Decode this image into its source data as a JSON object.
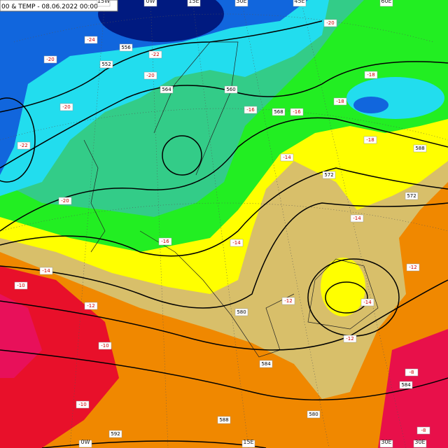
{
  "header": {
    "title": "00 & TEMP - 08.06.2022 00:00"
  },
  "longitudes": {
    "top": [
      "15W",
      "0W",
      "15E",
      "30E",
      "45E",
      "60E"
    ],
    "bottom": [
      "0W",
      "15E",
      "30E",
      "30E"
    ]
  },
  "contour_labels": [
    "552",
    "556",
    "564",
    "560",
    "568",
    "572",
    "572",
    "580",
    "584",
    "588",
    "592",
    "580",
    "584",
    "588"
  ],
  "temperature_labels": [
    "-24",
    "-22",
    "-20",
    "-20",
    "-22",
    "-20",
    "-16",
    "-18",
    "-18",
    "-16",
    "-14",
    "-14",
    "-14",
    "-14",
    "-16",
    "-12",
    "-12",
    "-12",
    "-14",
    "-12",
    "-10",
    "-10",
    "-10",
    "-8",
    "-8",
    "-20",
    "-18",
    "-20"
  ]
}
